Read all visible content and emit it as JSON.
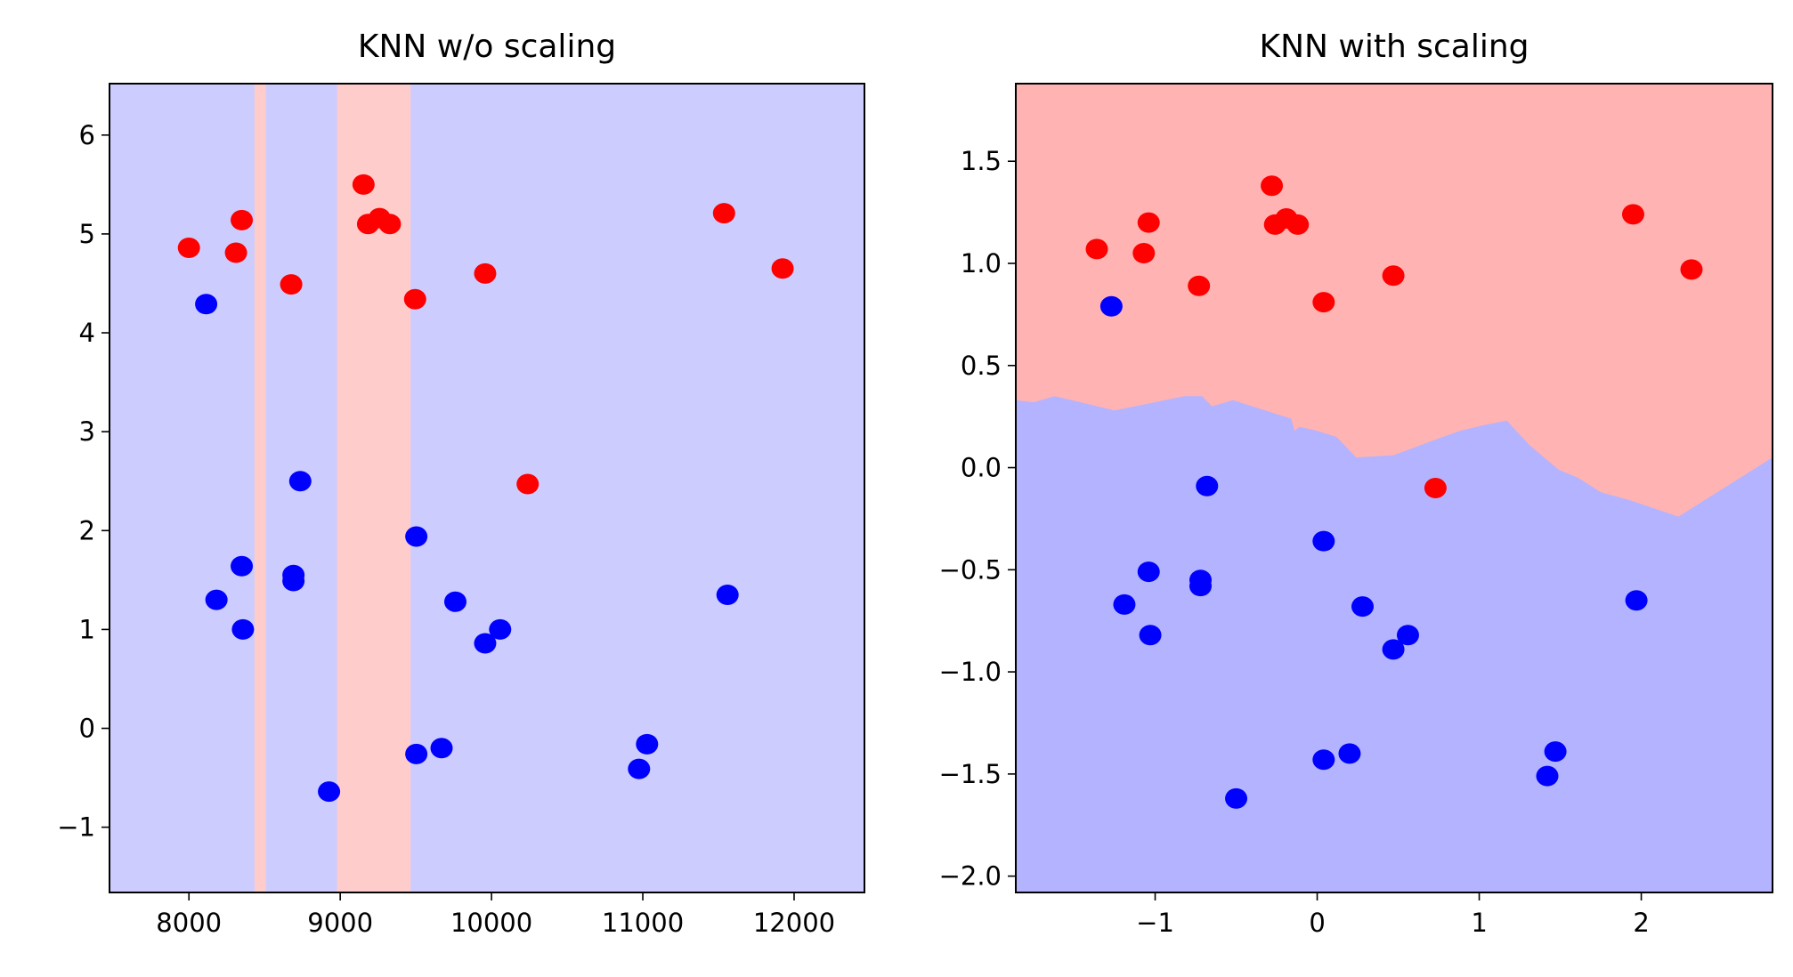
{
  "chart_data": [
    {
      "type": "scatter",
      "title": "KNN w/o scaling",
      "xlim": [
        7475,
        12465
      ],
      "ylim": [
        -1.66,
        6.52
      ],
      "xticks": [
        8000,
        9000,
        10000,
        11000,
        12000
      ],
      "xtick_labels": [
        "8000",
        "9000",
        "10000",
        "11000",
        "12000"
      ],
      "yticks": [
        -1,
        0,
        1,
        2,
        3,
        4,
        5,
        6
      ],
      "ytick_labels": [
        "−1",
        "0",
        "1",
        "2",
        "3",
        "4",
        "5",
        "6"
      ],
      "grid": false,
      "background_color": "#ccccff",
      "decision_regions": {
        "color": "#ffcccc",
        "x_bands": [
          [
            8433,
            8509
          ],
          [
            8979,
            9465
          ]
        ]
      },
      "series": [
        {
          "color": "#ff0000",
          "points": [
            [
              8000,
              4.86
            ],
            [
              8311,
              4.81
            ],
            [
              8349,
              5.14
            ],
            [
              8676,
              4.49
            ],
            [
              9154,
              5.5
            ],
            [
              9184,
              5.1
            ],
            [
              9260,
              5.16
            ],
            [
              9328,
              5.1
            ],
            [
              9495,
              4.34
            ],
            [
              9958,
              4.6
            ],
            [
              10239,
              2.47
            ],
            [
              11537,
              5.21
            ],
            [
              11924,
              4.65
            ]
          ]
        },
        {
          "color": "#0000ff",
          "points": [
            [
              8114,
              4.29
            ],
            [
              8736,
              2.5
            ],
            [
              9503,
              1.94
            ],
            [
              8349,
              1.64
            ],
            [
              8691,
              1.55
            ],
            [
              8691,
              1.49
            ],
            [
              8182,
              1.3
            ],
            [
              8357,
              1.0
            ],
            [
              9761,
              1.28
            ],
            [
              10057,
              1.0
            ],
            [
              9958,
              0.86
            ],
            [
              11560,
              1.35
            ],
            [
              9503,
              -0.26
            ],
            [
              9670,
              -0.2
            ],
            [
              8926,
              -0.64
            ],
            [
              10975,
              -0.41
            ],
            [
              11028,
              -0.16
            ]
          ]
        }
      ]
    },
    {
      "type": "scatter",
      "title": "KNN with scaling",
      "xlim": [
        -1.86,
        2.81
      ],
      "ylim": [
        -2.08,
        1.88
      ],
      "xticks": [
        -1,
        0,
        1,
        2
      ],
      "xtick_labels": [
        "−1",
        "0",
        "1",
        "2"
      ],
      "yticks": [
        -2.0,
        -1.5,
        -1.0,
        -0.5,
        0.0,
        0.5,
        1.0,
        1.5
      ],
      "ytick_labels": [
        "−2.0",
        "−1.5",
        "−1.0",
        "−0.5",
        "0.0",
        "0.5",
        "1.0",
        "1.5"
      ],
      "grid": false,
      "background_color": "#ffb3b3",
      "decision_regions": {
        "color": "#b3b3ff",
        "lower_boundary": [
          [
            -1.86,
            0.33
          ],
          [
            -1.75,
            0.32
          ],
          [
            -1.62,
            0.35
          ],
          [
            -1.25,
            0.28
          ],
          [
            -0.82,
            0.35
          ],
          [
            -0.71,
            0.35
          ],
          [
            -0.65,
            0.3
          ],
          [
            -0.52,
            0.33
          ],
          [
            -0.28,
            0.27
          ],
          [
            -0.16,
            0.24
          ],
          [
            -0.14,
            0.18
          ],
          [
            -0.11,
            0.2
          ],
          [
            0,
            0.18
          ],
          [
            0.12,
            0.15
          ],
          [
            0.24,
            0.05
          ],
          [
            0.47,
            0.06
          ],
          [
            0.74,
            0.14
          ],
          [
            0.88,
            0.18
          ],
          [
            1.04,
            0.21
          ],
          [
            1.17,
            0.23
          ],
          [
            1.31,
            0.11
          ],
          [
            1.49,
            -0.01
          ],
          [
            1.61,
            -0.05
          ],
          [
            1.75,
            -0.12
          ],
          [
            1.93,
            -0.16
          ],
          [
            2.23,
            -0.24
          ],
          [
            2.81,
            0.05
          ]
        ]
      },
      "series": [
        {
          "color": "#ff0000",
          "points": [
            [
              -1.36,
              1.07
            ],
            [
              -1.07,
              1.05
            ],
            [
              -1.04,
              1.2
            ],
            [
              -0.73,
              0.89
            ],
            [
              -0.28,
              1.38
            ],
            [
              -0.26,
              1.19
            ],
            [
              -0.19,
              1.22
            ],
            [
              -0.12,
              1.19
            ],
            [
              0.04,
              0.81
            ],
            [
              0.47,
              0.94
            ],
            [
              0.73,
              -0.1
            ],
            [
              1.95,
              1.24
            ],
            [
              2.31,
              0.97
            ]
          ]
        },
        {
          "color": "#0000ff",
          "points": [
            [
              -1.27,
              0.79
            ],
            [
              -0.68,
              -0.09
            ],
            [
              0.04,
              -0.36
            ],
            [
              -1.04,
              -0.51
            ],
            [
              -0.72,
              -0.55
            ],
            [
              -0.72,
              -0.58
            ],
            [
              -1.19,
              -0.67
            ],
            [
              -1.03,
              -0.82
            ],
            [
              0.28,
              -0.68
            ],
            [
              0.56,
              -0.82
            ],
            [
              0.47,
              -0.89
            ],
            [
              1.97,
              -0.65
            ],
            [
              0.04,
              -1.43
            ],
            [
              0.2,
              -1.4
            ],
            [
              -0.5,
              -1.62
            ],
            [
              1.42,
              -1.51
            ],
            [
              1.47,
              -1.39
            ]
          ]
        }
      ]
    }
  ]
}
